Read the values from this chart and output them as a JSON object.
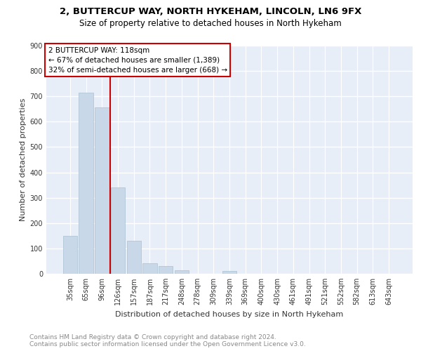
{
  "title_line1": "2, BUTTERCUP WAY, NORTH HYKEHAM, LINCOLN, LN6 9FX",
  "title_line2": "Size of property relative to detached houses in North Hykeham",
  "xlabel": "Distribution of detached houses by size in North Hykeham",
  "ylabel": "Number of detached properties",
  "categories": [
    "35sqm",
    "65sqm",
    "96sqm",
    "126sqm",
    "157sqm",
    "187sqm",
    "217sqm",
    "248sqm",
    "278sqm",
    "309sqm",
    "339sqm",
    "369sqm",
    "400sqm",
    "430sqm",
    "461sqm",
    "491sqm",
    "521sqm",
    "552sqm",
    "582sqm",
    "613sqm",
    "643sqm"
  ],
  "values": [
    150,
    715,
    655,
    340,
    130,
    42,
    30,
    13,
    0,
    0,
    10,
    0,
    0,
    0,
    0,
    0,
    0,
    0,
    0,
    0,
    0
  ],
  "bar_color": "#c8d8e8",
  "bar_edge_color": "#a8c0d0",
  "vline_color": "#cc0000",
  "annotation_text": "2 BUTTERCUP WAY: 118sqm\n← 67% of detached houses are smaller (1,389)\n32% of semi-detached houses are larger (668) →",
  "annotation_box_color": "#ffffff",
  "annotation_box_edge": "#cc0000",
  "ylim": [
    0,
    900
  ],
  "yticks": [
    0,
    100,
    200,
    300,
    400,
    500,
    600,
    700,
    800,
    900
  ],
  "plot_bg_color": "#e8eef8",
  "footer_line1": "Contains HM Land Registry data © Crown copyright and database right 2024.",
  "footer_line2": "Contains public sector information licensed under the Open Government Licence v3.0.",
  "title_fontsize": 9.5,
  "subtitle_fontsize": 8.5,
  "axis_label_fontsize": 8,
  "tick_fontsize": 7,
  "annotation_fontsize": 7.5,
  "footer_fontsize": 6.5
}
